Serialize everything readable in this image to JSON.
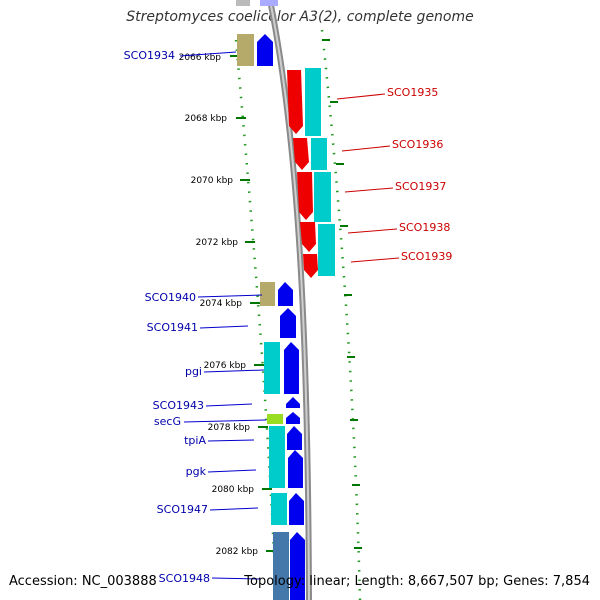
{
  "title": "Streptomyces coelicolor A3(2), complete genome",
  "footer": {
    "accession": "Accession: NC_003888",
    "summary": "Topology: linear; Length: 8,667,507 bp; Genes: 7,854"
  },
  "ruler_labels": [
    "2066 kbp",
    "2068 kbp",
    "2070 kbp",
    "2072 kbp",
    "2074 kbp",
    "2076 kbp",
    "2078 kbp",
    "2080 kbp",
    "2082 kbp"
  ],
  "genes_right": [
    "SCO1935",
    "SCO1936",
    "SCO1937",
    "SCO1938",
    "SCO1939"
  ],
  "genes_left": [
    "SCO1934",
    "SCO1940",
    "SCO1941",
    "pgi",
    "SCO1943",
    "secG",
    "tpiA",
    "pgk",
    "SCO1947",
    "SCO1948"
  ],
  "colors": {
    "forward_arrow": "#0000ee",
    "reverse_arrow": "#ee0000",
    "cog_cyan": "#00cccc",
    "cog_olive": "#b5aa6a",
    "cog_green": "#99dd22",
    "cog_steel": "#4477aa",
    "label_blue": "#0000aa",
    "label_red": "#cc0000",
    "tick_green": "#007700"
  }
}
